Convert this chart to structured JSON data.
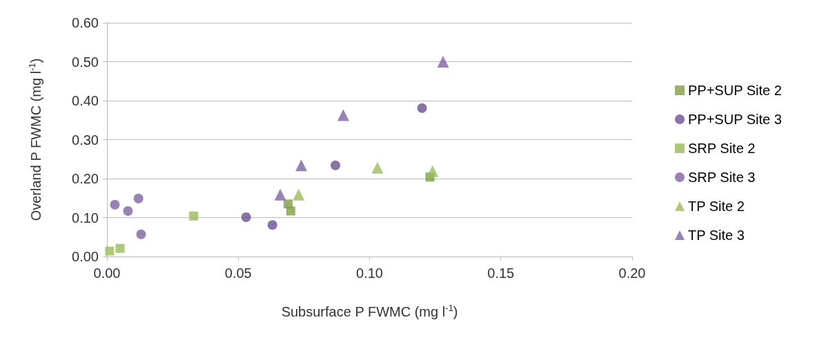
{
  "chart_data": {
    "type": "scatter",
    "xlabel": "Subsurface P FWMC (mg l$^{-1}$)",
    "ylabel": "Overland P FWMC (mg l$^{-1}$)",
    "xlim": [
      0,
      0.2
    ],
    "xticks": [
      {
        "value": 0,
        "label": "0.00"
      },
      {
        "value": 0.05,
        "label": "0.05"
      },
      {
        "value": 0.1,
        "label": "0.10"
      },
      {
        "value": 0.15,
        "label": "0.15"
      },
      {
        "value": 0.2,
        "label": "0.20"
      }
    ],
    "ylim": [
      0,
      0.6
    ],
    "yticks": [
      {
        "value": 0,
        "label": "0.00"
      },
      {
        "value": 0.1,
        "label": "0.10"
      },
      {
        "value": 0.2,
        "label": "0.20"
      },
      {
        "value": 0.3,
        "label": "0.30"
      },
      {
        "value": 0.4,
        "label": "0.40"
      },
      {
        "value": 0.5,
        "label": "0.50"
      },
      {
        "value": 0.6,
        "label": "0.60"
      }
    ],
    "grid": "y",
    "legend": "right",
    "series": [
      {
        "name": "PP+SUP Site 2",
        "color": "#7f9f45",
        "marker": "square",
        "x": [
          0.069,
          0.07,
          0.123
        ],
        "values": [
          0.135,
          0.117,
          0.204
        ]
      },
      {
        "name": "PP+SUP Site 3",
        "color": "#6a5090",
        "marker": "circle",
        "x": [
          0.053,
          0.063,
          0.087,
          0.12
        ],
        "values": [
          0.101,
          0.081,
          0.234,
          0.381
        ]
      },
      {
        "name": "SRP Site 2",
        "color": "#9bbb59",
        "marker": "square",
        "x": [
          0.001,
          0.005,
          0.033
        ],
        "values": [
          0.014,
          0.021,
          0.104
        ]
      },
      {
        "name": "SRP Site 3",
        "color": "#8064a2",
        "marker": "circle",
        "x": [
          0.003,
          0.008,
          0.012,
          0.013
        ],
        "values": [
          0.133,
          0.117,
          0.149,
          0.057
        ]
      },
      {
        "name": "TP Site 2",
        "color": "#9bbb59",
        "marker": "triangle",
        "x": [
          0.073,
          0.103,
          0.124
        ],
        "values": [
          0.159,
          0.228,
          0.219
        ]
      },
      {
        "name": "TP Site 3",
        "color": "#8064a2",
        "marker": "triangle",
        "x": [
          0.066,
          0.074,
          0.09,
          0.128
        ],
        "values": [
          0.159,
          0.234,
          0.363,
          0.5
        ]
      }
    ]
  }
}
